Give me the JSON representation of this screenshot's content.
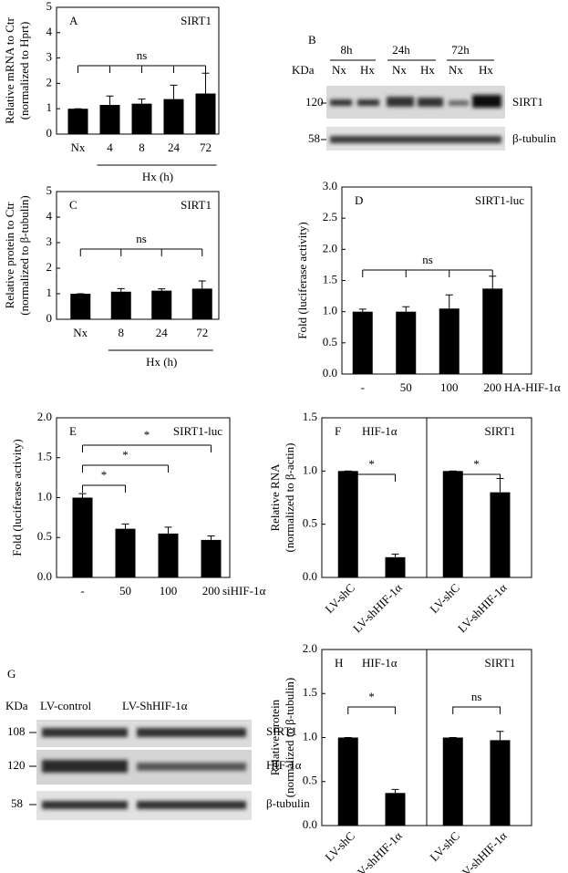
{
  "chart_data": [
    {
      "type": "bar",
      "panel": "A",
      "title": "SIRT1",
      "ylabel": [
        "Relative mRNA to Ctr",
        "(normalized to Hprt)"
      ],
      "categories": [
        "Nx",
        "4",
        "8",
        "24",
        "72"
      ],
      "values": [
        1,
        1.15,
        1.2,
        1.38,
        1.6
      ],
      "errors": [
        0,
        0.35,
        0.18,
        0.55,
        0.8
      ],
      "color": "#000000",
      "ylim": [
        0,
        5
      ],
      "yticks": [
        0,
        1,
        2,
        3,
        4,
        5
      ],
      "annotations": [
        "ns"
      ],
      "group_label": "Hx (h)"
    },
    {
      "type": "bar",
      "panel": "C",
      "title": "SIRT1",
      "ylabel": [
        "Relative protein to Ctr",
        "(normalized to β-tubulin)"
      ],
      "categories": [
        "Nx",
        "8",
        "24",
        "72"
      ],
      "values": [
        1,
        1.08,
        1.12,
        1.2
      ],
      "errors": [
        0,
        0.12,
        0.07,
        0.3
      ],
      "color": "#000000",
      "ylim": [
        0,
        5
      ],
      "yticks": [
        0,
        1,
        2,
        3,
        4,
        5
      ],
      "annotations": [
        "ns"
      ],
      "group_label": "Hx (h)"
    },
    {
      "type": "bar",
      "panel": "D",
      "title": "SIRT1-luc",
      "ylabel": [
        "Fold (luciferase activity)"
      ],
      "categories": [
        "-",
        "50",
        "100",
        "200"
      ],
      "values": [
        1.0,
        1.0,
        1.05,
        1.37
      ],
      "errors": [
        0.04,
        0.08,
        0.22,
        0.2
      ],
      "color": "#000000",
      "ylim": [
        0,
        3
      ],
      "yticks": [
        {
          "value": 0,
          "label": "0.0"
        },
        0.5,
        {
          "value": 1,
          "label": "1.0"
        },
        1.5,
        {
          "value": 2,
          "label": "2.0"
        },
        2.5,
        {
          "value": 3,
          "label": "3.0"
        }
      ],
      "xlabel": "HA-HIF-1α",
      "annotations": [
        "ns"
      ]
    },
    {
      "type": "bar",
      "panel": "E",
      "title": "SIRT1-luc",
      "ylabel": [
        "Fold (luciferase activity)"
      ],
      "categories": [
        "-",
        "50",
        "100",
        "200"
      ],
      "values": [
        1.0,
        0.61,
        0.55,
        0.47
      ],
      "errors": [
        0.05,
        0.06,
        0.08,
        0.05
      ],
      "color": "#000000",
      "ylim": [
        0,
        2
      ],
      "yticks": [
        {
          "value": 0,
          "label": "0.0"
        },
        0.5,
        {
          "value": 1,
          "label": "1.0"
        },
        1.5,
        {
          "value": 2,
          "label": "2.0"
        }
      ],
      "xlabel": "siHIF-1α",
      "annotations": [
        "*",
        "*",
        "*"
      ]
    },
    {
      "type": "bar_split",
      "panel": "F",
      "ylabel": [
        "Relative RNA",
        "(normalized to β-actin)"
      ],
      "color": "#000000",
      "ylim": [
        0,
        1.5
      ],
      "yticks": [
        {
          "value": 0,
          "label": "0.0"
        },
        0.5,
        {
          "value": 1,
          "label": "1.0"
        },
        1.5
      ],
      "groups": [
        {
          "title": "HIF-1α",
          "categories": [
            "LV-shC",
            "LV-shHIF-1α"
          ],
          "values": [
            1,
            0.19
          ],
          "errors": [
            0,
            0.03
          ],
          "annotation": "*"
        },
        {
          "title": "SIRT1",
          "categories": [
            "LV-shC",
            "LV-shHIF-1α"
          ],
          "values": [
            1,
            0.8
          ],
          "errors": [
            0,
            0.13
          ],
          "annotation": "*"
        }
      ]
    },
    {
      "type": "bar_split",
      "panel": "H",
      "ylabel": [
        "Relative protein",
        "(normalized to β-tubulin)"
      ],
      "color": "#000000",
      "ylim": [
        0,
        2
      ],
      "yticks": [
        {
          "value": 0,
          "label": "0.0"
        },
        0.5,
        {
          "value": 1,
          "label": "1.0"
        },
        1.5,
        {
          "value": 2,
          "label": "2.0"
        }
      ],
      "groups": [
        {
          "title": "HIF-1α",
          "categories": [
            "LV-shC",
            "LV-shHIF-1α"
          ],
          "values": [
            1,
            0.37
          ],
          "errors": [
            0,
            0.04
          ],
          "annotation": "*"
        },
        {
          "title": "SIRT1",
          "categories": [
            "LV-shC",
            "LV-shHIF-1α"
          ],
          "values": [
            1,
            0.97
          ],
          "errors": [
            0,
            0.1
          ],
          "annotation": "ns"
        }
      ]
    }
  ],
  "blots": [
    {
      "panel": "B",
      "unit": "KDa",
      "timepoints": [
        "8h",
        "24h",
        "72h"
      ],
      "conditions": [
        "Nx",
        "Hx",
        "Nx",
        "Hx",
        "Nx",
        "Hx"
      ],
      "rows": [
        {
          "size": 120,
          "protein": "SIRT1"
        },
        {
          "size": 58,
          "protein": "β-tubulin"
        }
      ]
    },
    {
      "panel": "G",
      "unit": "KDa",
      "lanes": [
        "LV-control",
        "LV-ShHIF-1α"
      ],
      "rows": [
        {
          "size": 108,
          "protein": "SIRT1"
        },
        {
          "size": 120,
          "protein": "HIF-1α"
        },
        {
          "size": 58,
          "protein": "β-tubulin"
        }
      ]
    }
  ]
}
